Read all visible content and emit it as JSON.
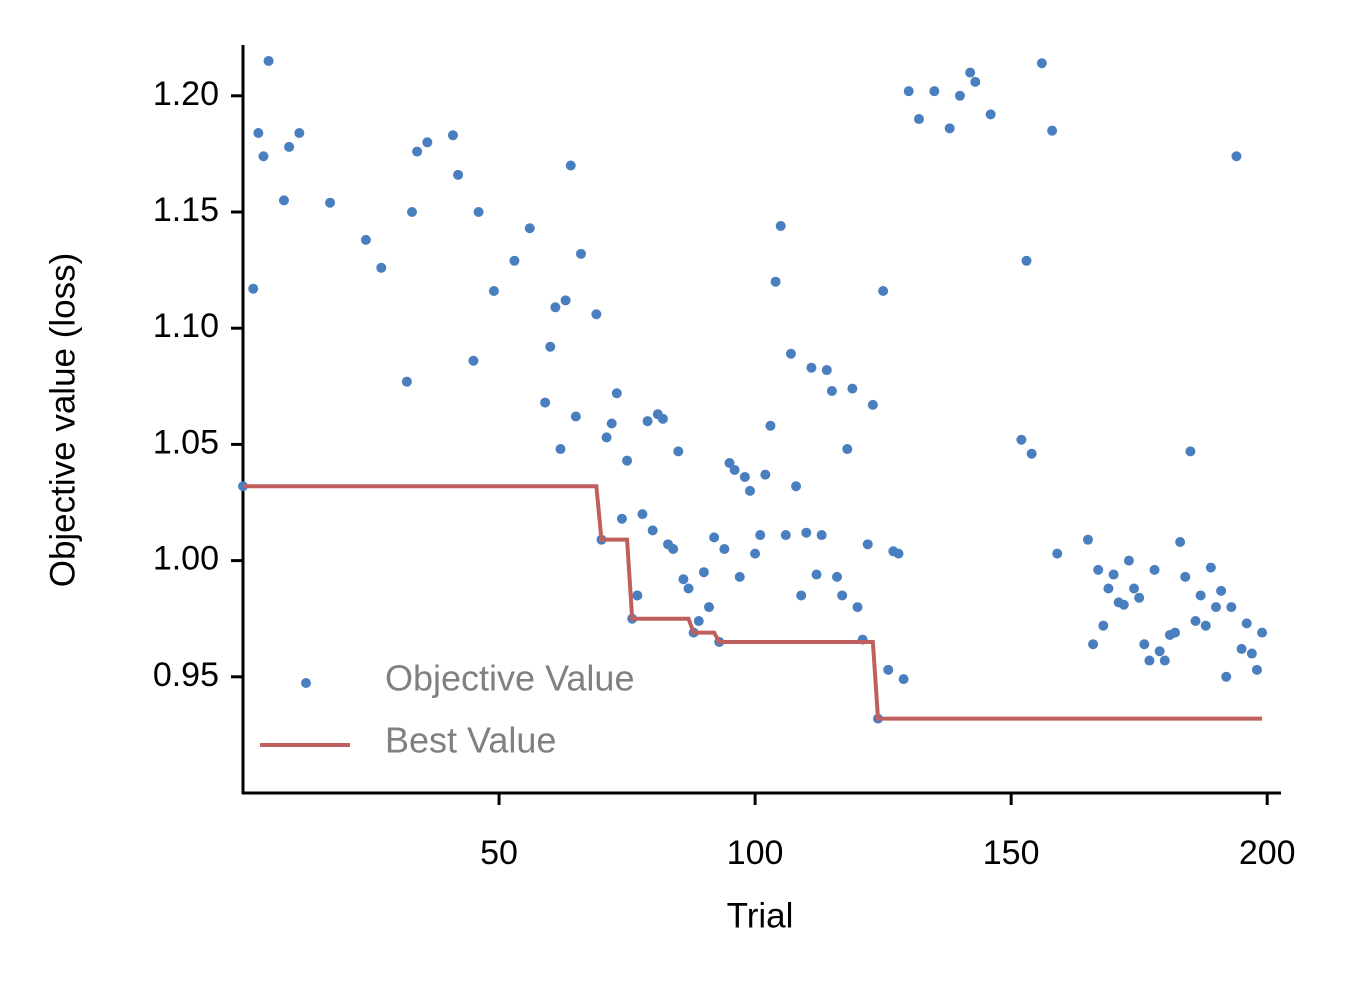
{
  "chart_data": {
    "type": "scatter",
    "x_label": "Trial",
    "y_label": "Objective value (loss)",
    "xlim": [
      0,
      202.5
    ],
    "ylim": [
      0.9,
      1.221
    ],
    "xticks": [
      50,
      100,
      150,
      200
    ],
    "yticks": [
      0.95,
      {
        "value": 1.0,
        "label": "1.00"
      },
      1.05,
      {
        "value": 1.1,
        "label": "1.10"
      },
      1.15,
      {
        "value": 1.2,
        "label": "1.20"
      }
    ],
    "grid": false,
    "legend": "lower left",
    "series": [
      {
        "name": "Objective Value",
        "type": "scatter",
        "color": "#4a7fbf",
        "x": [
          0,
          2,
          3,
          4,
          5,
          8,
          9,
          11,
          17,
          24,
          27,
          32,
          33,
          34,
          36,
          41,
          42,
          45,
          46,
          49,
          53,
          56,
          59,
          60,
          61,
          62,
          63,
          64,
          65,
          66,
          69,
          70,
          71,
          72,
          73,
          74,
          75,
          76,
          77,
          78,
          79,
          80,
          81,
          82,
          83,
          84,
          85,
          86,
          87,
          88,
          89,
          90,
          91,
          92,
          93,
          94,
          95,
          96,
          97,
          98,
          99,
          100,
          101,
          102,
          103,
          104,
          105,
          106,
          107,
          108,
          109,
          110,
          111,
          112,
          113,
          114,
          115,
          116,
          117,
          118,
          119,
          120,
          121,
          122,
          123,
          124,
          125,
          126,
          127,
          128,
          129,
          130,
          132,
          135,
          138,
          140,
          142,
          143,
          146,
          152,
          153,
          154,
          156,
          158,
          159,
          165,
          166,
          167,
          168,
          169,
          170,
          171,
          172,
          173,
          174,
          175,
          176,
          177,
          178,
          179,
          180,
          181,
          182,
          183,
          184,
          185,
          186,
          187,
          188,
          189,
          190,
          191,
          192,
          193,
          194,
          195,
          196,
          197,
          198,
          199
        ],
        "values": [
          1.032,
          1.117,
          1.184,
          1.174,
          1.215,
          1.155,
          1.178,
          1.184,
          1.154,
          1.138,
          1.126,
          1.077,
          1.15,
          1.176,
          1.18,
          1.183,
          1.166,
          1.086,
          1.15,
          1.116,
          1.129,
          1.143,
          1.068,
          1.092,
          1.109,
          1.048,
          1.112,
          1.17,
          1.062,
          1.132,
          1.106,
          1.009,
          1.053,
          1.059,
          1.072,
          1.018,
          1.043,
          0.975,
          0.985,
          1.02,
          1.06,
          1.013,
          1.063,
          1.061,
          1.007,
          1.005,
          1.047,
          0.992,
          0.988,
          0.969,
          0.974,
          0.995,
          0.98,
          1.01,
          0.965,
          1.005,
          1.042,
          1.039,
          0.993,
          1.036,
          1.03,
          1.003,
          1.011,
          1.037,
          1.058,
          1.12,
          1.144,
          1.011,
          1.089,
          1.032,
          0.985,
          1.012,
          1.083,
          0.994,
          1.011,
          1.082,
          1.073,
          0.993,
          0.985,
          1.048,
          1.074,
          0.98,
          0.966,
          1.007,
          1.067,
          0.932,
          1.116,
          0.953,
          1.004,
          1.003,
          0.949,
          1.202,
          1.19,
          1.202,
          1.186,
          1.2,
          1.21,
          1.206,
          1.192,
          1.052,
          1.129,
          1.046,
          1.214,
          1.185,
          1.003,
          1.009,
          0.964,
          0.996,
          0.972,
          0.988,
          0.994,
          0.982,
          0.981,
          1.0,
          0.988,
          0.984,
          0.964,
          0.957,
          0.996,
          0.961,
          0.957,
          0.968,
          0.969,
          1.008,
          0.993,
          1.047,
          0.974,
          0.985,
          0.972,
          0.997,
          0.98,
          0.987,
          0.95,
          0.98,
          1.174,
          0.962,
          0.973,
          0.96,
          0.953,
          0.969
        ]
      },
      {
        "name": "Best Value",
        "type": "line",
        "color": "#c0605e",
        "x": [
          0,
          69,
          70,
          75,
          76,
          87,
          88,
          92,
          93,
          123,
          124,
          199
        ],
        "values": [
          1.032,
          1.032,
          1.009,
          1.009,
          0.975,
          0.975,
          0.969,
          0.969,
          0.965,
          0.965,
          0.932,
          0.932
        ]
      }
    ]
  }
}
